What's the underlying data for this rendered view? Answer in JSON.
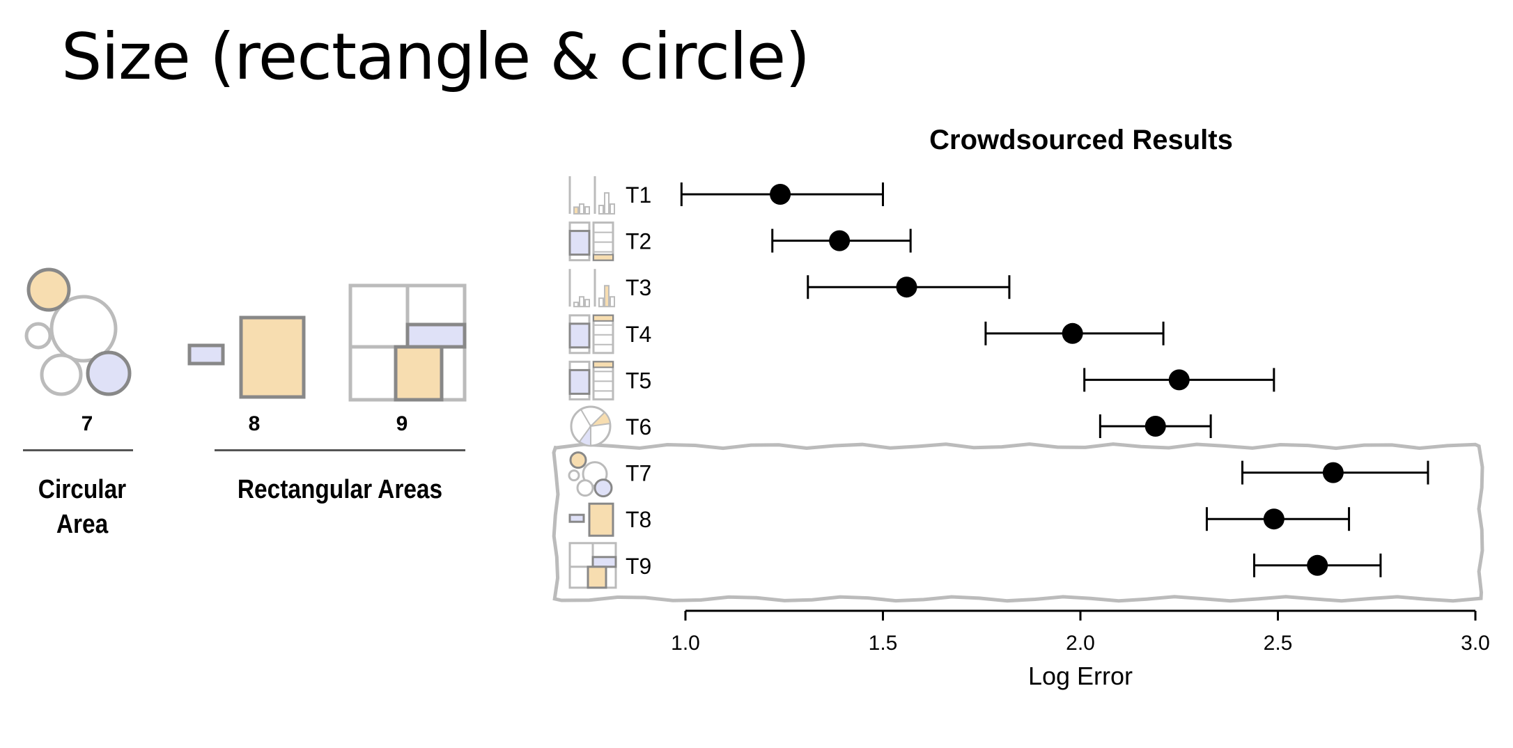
{
  "slide": {
    "title": "Size (rectangle & circle)"
  },
  "left_figure": {
    "labels": [
      "7",
      "8",
      "9"
    ],
    "groups": [
      "Circular\nArea",
      "Rectangular Areas"
    ]
  },
  "colors": {
    "highlight_orange": "#f7ddb0",
    "highlight_blue": "#dfe1f7",
    "stroke_gray": "#888888",
    "light_gray": "#bbbbbb",
    "point": "#000000"
  },
  "chart_data": {
    "type": "scatter",
    "title": "Crowdsourced Results",
    "xlabel": "Log Error",
    "ylabel": "",
    "xlim": [
      1.0,
      3.0
    ],
    "xticks": [
      "1.0",
      "1.5",
      "2.0",
      "2.5",
      "3.0"
    ],
    "categories": [
      "T1",
      "T2",
      "T3",
      "T4",
      "T5",
      "T6",
      "T7",
      "T8",
      "T9"
    ],
    "icons": [
      "bar-chart-icon",
      "stacked-bar-icon",
      "bar-chart-icon",
      "stacked-bar-icon",
      "stacked-bar-icon",
      "pie-chart-icon",
      "bubble-icon",
      "rectangle-pair-icon",
      "treemap-icon"
    ],
    "values": [
      1.24,
      1.39,
      1.56,
      1.98,
      2.25,
      2.19,
      2.64,
      2.49,
      2.6
    ],
    "ci_low": [
      0.99,
      1.22,
      1.31,
      1.76,
      2.01,
      2.05,
      2.41,
      2.32,
      2.44
    ],
    "ci_high": [
      1.5,
      1.57,
      1.82,
      2.21,
      2.49,
      2.33,
      2.88,
      2.68,
      2.76
    ],
    "highlighted_categories": [
      "T7",
      "T8",
      "T9"
    ],
    "grid": false,
    "legend": "none"
  }
}
